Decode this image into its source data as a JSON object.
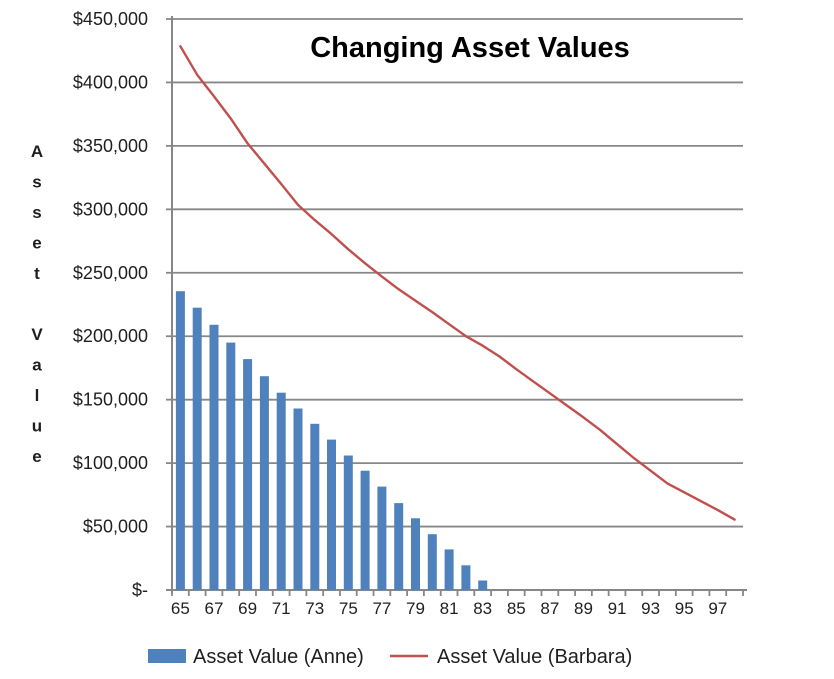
{
  "colors": {
    "bar": "#4F81BD",
    "line": "#C0504D",
    "grid": "#878787",
    "text": "#1f1f1f",
    "background": "#FFFFFF"
  },
  "chart_data": {
    "type": "combo",
    "title": "Changing Asset Values",
    "xlabel": "",
    "ylabel": "Asset Value",
    "grid": true,
    "legend_position": "bottom",
    "categories": [
      65,
      66,
      67,
      68,
      69,
      70,
      71,
      72,
      73,
      74,
      75,
      76,
      77,
      78,
      79,
      80,
      81,
      82,
      83,
      84,
      85,
      86,
      87,
      88,
      89,
      90,
      91,
      92,
      93,
      94,
      95,
      96,
      97,
      98
    ],
    "x_axis": {
      "tick_labels": [
        "65",
        "67",
        "69",
        "71",
        "73",
        "75",
        "77",
        "79",
        "81",
        "83",
        "85",
        "87",
        "89",
        "91",
        "93",
        "95",
        "97"
      ]
    },
    "y_axis": {
      "min": 0,
      "max": 450000,
      "step": 50000,
      "tick_labels": [
        "$450,000",
        "$400,000",
        "$350,000",
        "$300,000",
        "$250,000",
        "$200,000",
        "$150,000",
        "$100,000",
        "$50,000",
        "$-"
      ]
    },
    "series": [
      {
        "name": "Asset Value (Anne)",
        "type": "bar",
        "color": "#4F81BD",
        "values": [
          235500,
          222500,
          209000,
          195000,
          182000,
          168500,
          155500,
          143000,
          131000,
          118500,
          106000,
          94000,
          81500,
          68500,
          56500,
          44000,
          32000,
          19500,
          7500,
          null,
          null,
          null,
          null,
          null,
          null,
          null,
          null,
          null,
          null,
          null,
          null,
          null,
          null,
          null
        ]
      },
      {
        "name": "Asset Value (Barbara)",
        "type": "line",
        "color": "#C0504D",
        "values": [
          428500,
          406000,
          389000,
          371500,
          352000,
          336000,
          320000,
          303500,
          291500,
          280500,
          268500,
          257500,
          247000,
          237000,
          228000,
          219000,
          209500,
          200000,
          192500,
          184000,
          174000,
          164500,
          155000,
          145500,
          136000,
          126000,
          115000,
          104000,
          94000,
          84000,
          77000,
          70000,
          63000,
          55500
        ]
      }
    ]
  }
}
